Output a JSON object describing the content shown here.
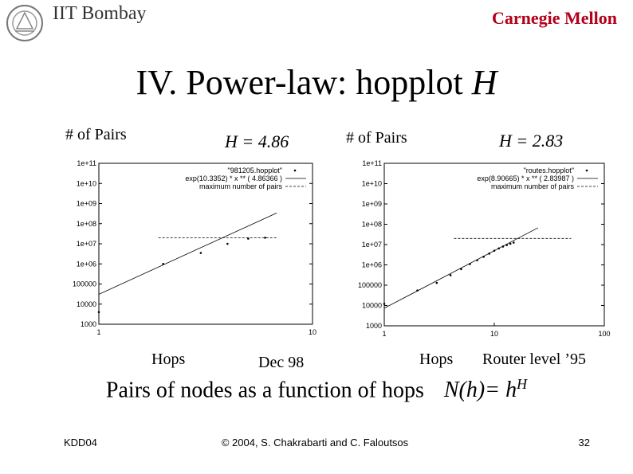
{
  "header": {
    "institution": "IIT Bombay",
    "partner": "Carnegie Mellon"
  },
  "slide": {
    "title_main": "IV. Power-law: hopplot",
    "title_var": "H",
    "subtitle_main": "Pairs of nodes as a function of hops",
    "formula_lhs": "N(h)= h",
    "formula_exp": "H",
    "date_note": "Dec 98",
    "router_note": "Router level ’95"
  },
  "footer": {
    "left": "KDD04",
    "center": "© 2004, S. Chakrabarti and C. Faloutsos",
    "page": "32"
  },
  "colors": {
    "accent": "#b3001b",
    "text": "#000000"
  },
  "chart_data": [
    {
      "type": "scatter",
      "title": "H = 4.86",
      "ylabel": "# of Pairs",
      "xlabel": "Hops",
      "xscale": "log",
      "yscale": "log",
      "xlim": [
        1,
        10
      ],
      "ylim": [
        1000,
        100000000000
      ],
      "x_ticks": [
        "1",
        "10"
      ],
      "y_ticks": [
        "1000",
        "10000",
        "100000",
        "1e+06",
        "1e+07",
        "1e+08",
        "1e+09",
        "1e+10",
        "1e+11"
      ],
      "legend_position": "top-right",
      "series": [
        {
          "name": "\"981205.hopplot\"",
          "style": "points",
          "x": [
            1,
            2,
            3,
            4,
            5,
            6
          ],
          "y": [
            4000,
            1000000,
            3500000,
            10000000,
            18000000,
            20000000
          ]
        },
        {
          "name": "exp(10.3352) * x ** ( 4.86366 )",
          "style": "line",
          "x": [
            1,
            6.8
          ],
          "y": [
            30700,
            340000000
          ]
        },
        {
          "name": "maximum number of pairs",
          "style": "dashed",
          "x": [
            1.9,
            6.8
          ],
          "y": [
            20000000,
            20000000
          ]
        }
      ]
    },
    {
      "type": "scatter",
      "title": "H = 2.83",
      "ylabel": "# of Pairs",
      "xlabel": "Hops",
      "xscale": "log",
      "yscale": "log",
      "xlim": [
        1,
        100
      ],
      "ylim": [
        1000,
        100000000000
      ],
      "x_ticks": [
        "1",
        "10",
        "100"
      ],
      "y_ticks": [
        "1000",
        "10000",
        "100000",
        "1e+06",
        "1e+07",
        "1e+08",
        "1e+09",
        "1e+10",
        "1e+11"
      ],
      "legend_position": "top-right",
      "series": [
        {
          "name": "\"routes.hopplot\"",
          "style": "points",
          "x": [
            1,
            2,
            3,
            4,
            5,
            6,
            7,
            8,
            9,
            10,
            11,
            12,
            13,
            14,
            15
          ],
          "y": [
            12000,
            55000,
            130000,
            310000,
            620000,
            1100000,
            1700000,
            2500000,
            3600000,
            5000000,
            6500000,
            8000000,
            9500000,
            11000000,
            12500000
          ]
        },
        {
          "name": "exp(8.90665) * x ** ( 2.83987 )",
          "style": "line",
          "x": [
            1,
            25
          ],
          "y": [
            7380,
            67000000
          ]
        },
        {
          "name": "maximum number of pairs",
          "style": "dashed",
          "x": [
            4.3,
            50
          ],
          "y": [
            20000000,
            20000000
          ]
        }
      ]
    }
  ]
}
